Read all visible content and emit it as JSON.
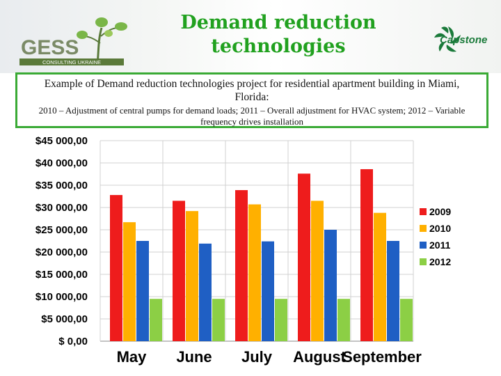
{
  "header": {
    "title_line1": "Demand reduction",
    "title_line2": "technologies",
    "logo_left_text": "GESS",
    "logo_left_subtext": "CONSULTING UKRAINE",
    "logo_right_text": "Capstone"
  },
  "subtitle": {
    "line1": "Example of Demand reduction technologies project for residential apartment building in Miami, Florida:",
    "line2": "2010 – Adjustment of central pumps for demand loads; 2011 – Overall adjustment for HVAC system; 2012 – Variable frequency drives installation"
  },
  "colors": {
    "title": "#21a11f",
    "box_border": "#3aaa35"
  },
  "chart_data": {
    "type": "bar",
    "categories": [
      "May",
      "June",
      "July",
      "August",
      "September"
    ],
    "series": [
      {
        "name": "2009",
        "color": "#ee1c1c",
        "values": [
          32800,
          31500,
          33900,
          37600,
          38600
        ]
      },
      {
        "name": "2010",
        "color": "#ffb000",
        "values": [
          26700,
          29200,
          30700,
          31500,
          28800
        ]
      },
      {
        "name": "2011",
        "color": "#1f5fc4",
        "values": [
          22500,
          21900,
          22400,
          25000,
          22500
        ]
      },
      {
        "name": "2012",
        "color": "#8ccf45",
        "values": [
          9500,
          9500,
          9500,
          9500,
          9500
        ]
      }
    ],
    "ylim": [
      0,
      45000
    ],
    "ytick_labels": [
      "$ 0,00",
      "$5 000,00",
      "$10 000,00",
      "$15 000,00",
      "$20 000,00",
      "$25 000,00",
      "$30 000,00",
      "$35 000,00",
      "$40 000,00",
      "$45 000,00"
    ],
    "grid": "horizontal",
    "legend_position": "right"
  }
}
